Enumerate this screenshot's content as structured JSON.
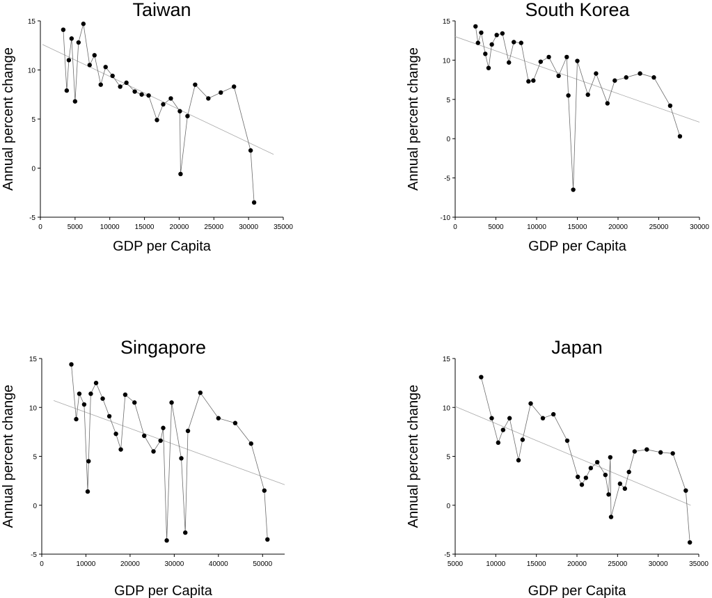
{
  "chart_data": [
    {
      "type": "scatter",
      "title": "Taiwan",
      "xlabel": "GDP per Capita",
      "ylabel": "Annual percent change",
      "xlim": [
        0,
        35000
      ],
      "ylim": [
        -5,
        15
      ],
      "xticks": [
        0,
        5000,
        10000,
        15000,
        20000,
        25000,
        30000,
        35000
      ],
      "yticks": [
        -5,
        0,
        5,
        10,
        15
      ],
      "points": [
        [
          3300,
          14.1
        ],
        [
          3800,
          7.9
        ],
        [
          4100,
          11.0
        ],
        [
          4500,
          13.2
        ],
        [
          5000,
          6.8
        ],
        [
          5500,
          12.8
        ],
        [
          6200,
          14.7
        ],
        [
          7100,
          10.5
        ],
        [
          7800,
          11.5
        ],
        [
          8700,
          8.5
        ],
        [
          9400,
          10.3
        ],
        [
          10400,
          9.4
        ],
        [
          11500,
          8.3
        ],
        [
          12400,
          8.7
        ],
        [
          13600,
          7.8
        ],
        [
          14600,
          7.5
        ],
        [
          15600,
          7.4
        ],
        [
          16800,
          4.9
        ],
        [
          17700,
          6.5
        ],
        [
          18800,
          7.1
        ],
        [
          20100,
          5.8
        ],
        [
          20200,
          -0.6
        ],
        [
          21200,
          5.3
        ],
        [
          22300,
          8.5
        ],
        [
          24200,
          7.1
        ],
        [
          26000,
          7.7
        ],
        [
          27900,
          8.3
        ],
        [
          30300,
          1.8
        ],
        [
          30800,
          -3.5
        ]
      ],
      "trendline": {
        "x": [
          300,
          33600
        ],
        "y": [
          12.6,
          1.4
        ]
      }
    },
    {
      "type": "scatter",
      "title": "South Korea",
      "xlabel": "GDP per Capita",
      "ylabel": "Annual percent change",
      "xlim": [
        0,
        30000
      ],
      "ylim": [
        -10,
        15
      ],
      "xticks": [
        0,
        5000,
        10000,
        15000,
        20000,
        25000,
        30000
      ],
      "yticks": [
        -10,
        -5,
        0,
        5,
        10,
        15
      ],
      "points": [
        [
          2500,
          14.3
        ],
        [
          2800,
          12.2
        ],
        [
          3200,
          13.5
        ],
        [
          3700,
          10.8
        ],
        [
          4100,
          9.0
        ],
        [
          4500,
          12.0
        ],
        [
          5100,
          13.2
        ],
        [
          5800,
          13.4
        ],
        [
          6600,
          9.7
        ],
        [
          7200,
          12.3
        ],
        [
          8100,
          12.2
        ],
        [
          9000,
          7.3
        ],
        [
          9600,
          7.4
        ],
        [
          10500,
          9.8
        ],
        [
          11500,
          10.4
        ],
        [
          12700,
          8.0
        ],
        [
          13700,
          10.4
        ],
        [
          13900,
          5.5
        ],
        [
          14500,
          -6.5
        ],
        [
          15000,
          9.9
        ],
        [
          16300,
          5.6
        ],
        [
          17300,
          8.3
        ],
        [
          18700,
          4.5
        ],
        [
          19600,
          7.4
        ],
        [
          21000,
          7.8
        ],
        [
          22700,
          8.3
        ],
        [
          24400,
          7.8
        ],
        [
          26400,
          4.2
        ],
        [
          27600,
          0.3
        ]
      ],
      "trendline": {
        "x": [
          0,
          30000
        ],
        "y": [
          13.0,
          2.1
        ]
      }
    },
    {
      "type": "scatter",
      "title": "Singapore",
      "xlabel": "GDP per Capita",
      "ylabel": "Annual percent change",
      "xlim": [
        0,
        55000
      ],
      "ylim": [
        -5,
        15
      ],
      "xticks": [
        0,
        10000,
        20000,
        30000,
        40000,
        50000
      ],
      "yticks": [
        -5,
        0,
        5,
        10,
        15
      ],
      "points": [
        [
          6700,
          14.4
        ],
        [
          7800,
          8.8
        ],
        [
          8500,
          11.4
        ],
        [
          9600,
          10.3
        ],
        [
          10400,
          1.4
        ],
        [
          10600,
          4.5
        ],
        [
          11100,
          11.4
        ],
        [
          12300,
          12.5
        ],
        [
          13800,
          10.9
        ],
        [
          15300,
          9.1
        ],
        [
          16800,
          7.3
        ],
        [
          17900,
          5.7
        ],
        [
          18900,
          11.3
        ],
        [
          21000,
          10.5
        ],
        [
          23200,
          7.1
        ],
        [
          25300,
          5.5
        ],
        [
          26900,
          6.6
        ],
        [
          27500,
          7.9
        ],
        [
          28300,
          -3.6
        ],
        [
          29400,
          10.5
        ],
        [
          31600,
          4.8
        ],
        [
          32500,
          -2.8
        ],
        [
          33100,
          7.6
        ],
        [
          35900,
          11.5
        ],
        [
          40000,
          8.9
        ],
        [
          43800,
          8.4
        ],
        [
          47400,
          6.3
        ],
        [
          50400,
          1.5
        ],
        [
          51100,
          -3.5
        ]
      ],
      "trendline": {
        "x": [
          2700,
          55000
        ],
        "y": [
          10.7,
          2.1
        ]
      }
    },
    {
      "type": "scatter",
      "title": "Japan",
      "xlabel": "GDP per Capita",
      "ylabel": "Annual percent change",
      "xlim": [
        5000,
        35000
      ],
      "ylim": [
        -5,
        15
      ],
      "xticks": [
        5000,
        10000,
        15000,
        20000,
        25000,
        30000,
        35000
      ],
      "yticks": [
        -5,
        0,
        5,
        10,
        15
      ],
      "points": [
        [
          8200,
          13.1
        ],
        [
          9500,
          8.9
        ],
        [
          10300,
          6.4
        ],
        [
          10900,
          7.7
        ],
        [
          11700,
          8.9
        ],
        [
          12800,
          4.6
        ],
        [
          13300,
          6.7
        ],
        [
          14300,
          10.4
        ],
        [
          15800,
          8.9
        ],
        [
          17100,
          9.3
        ],
        [
          18800,
          6.6
        ],
        [
          20100,
          2.9
        ],
        [
          20600,
          2.1
        ],
        [
          21100,
          2.8
        ],
        [
          21700,
          3.8
        ],
        [
          22500,
          4.4
        ],
        [
          23500,
          3.1
        ],
        [
          23900,
          1.1
        ],
        [
          24100,
          4.9
        ],
        [
          24200,
          -1.2
        ],
        [
          25300,
          2.2
        ],
        [
          25900,
          1.7
        ],
        [
          26400,
          3.4
        ],
        [
          27100,
          5.5
        ],
        [
          28600,
          5.7
        ],
        [
          30300,
          5.4
        ],
        [
          31800,
          5.3
        ],
        [
          33400,
          1.5
        ],
        [
          33900,
          -3.8
        ]
      ],
      "trendline": {
        "x": [
          5000,
          34000
        ],
        "y": [
          10.1,
          0.0
        ]
      }
    }
  ]
}
